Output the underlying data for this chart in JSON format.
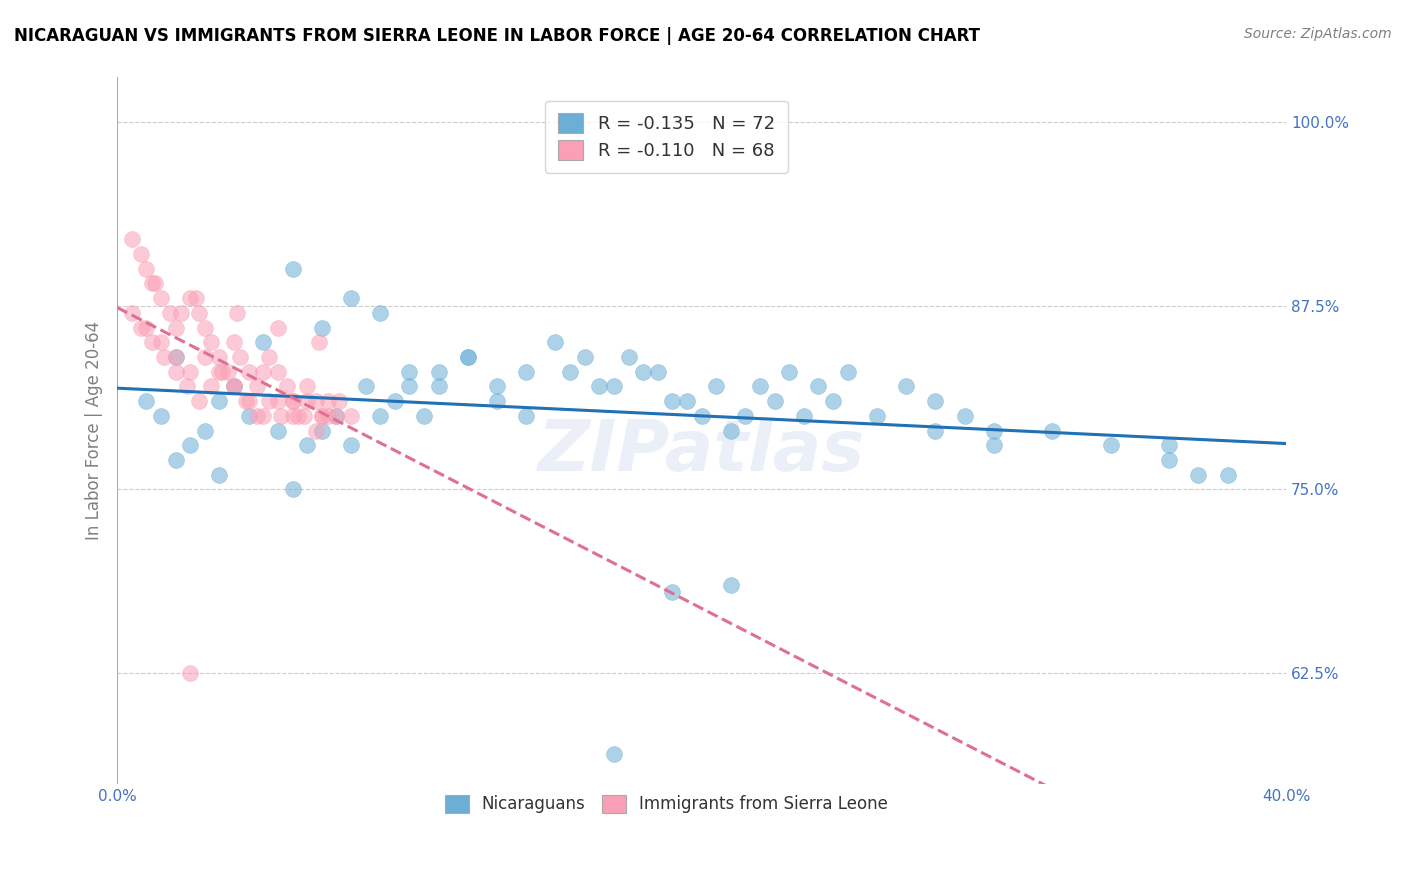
{
  "title": "NICARAGUAN VS IMMIGRANTS FROM SIERRA LEONE IN LABOR FORCE | AGE 20-64 CORRELATION CHART",
  "source": "Source: ZipAtlas.com",
  "ylabel": "In Labor Force | Age 20-64",
  "xlim": [
    0.0,
    0.4
  ],
  "ylim": [
    0.55,
    1.03
  ],
  "yticks": [
    0.625,
    0.75,
    0.875,
    1.0
  ],
  "ytick_labels": [
    "62.5%",
    "75.0%",
    "87.5%",
    "100.0%"
  ],
  "xticks": [
    0.0,
    0.05,
    0.1,
    0.15,
    0.2,
    0.25,
    0.3,
    0.35,
    0.4
  ],
  "legend1_label": "R = -0.135   N = 72",
  "legend2_label": "R = -0.110   N = 68",
  "legend_bottom_label1": "Nicaraguans",
  "legend_bottom_label2": "Immigrants from Sierra Leone",
  "blue_color": "#6baed6",
  "pink_color": "#fa9fb5",
  "trend_blue": "#2171b5",
  "trend_pink": "#e07090",
  "watermark": "ZIPatlas",
  "blue_scatter_x": [
    0.02,
    0.04,
    0.02,
    0.03,
    0.01,
    0.015,
    0.025,
    0.035,
    0.06,
    0.07,
    0.05,
    0.08,
    0.09,
    0.1,
    0.11,
    0.12,
    0.13,
    0.14,
    0.06,
    0.07,
    0.08,
    0.09,
    0.1,
    0.11,
    0.16,
    0.17,
    0.18,
    0.19,
    0.2,
    0.21,
    0.15,
    0.14,
    0.13,
    0.12,
    0.22,
    0.23,
    0.24,
    0.25,
    0.26,
    0.27,
    0.28,
    0.29,
    0.3,
    0.32,
    0.36,
    0.37,
    0.035,
    0.045,
    0.055,
    0.065,
    0.075,
    0.085,
    0.095,
    0.105,
    0.155,
    0.165,
    0.175,
    0.185,
    0.195,
    0.205,
    0.215,
    0.225,
    0.235,
    0.245,
    0.28,
    0.3,
    0.34,
    0.36,
    0.38,
    0.21,
    0.19,
    0.17
  ],
  "blue_scatter_y": [
    0.84,
    0.82,
    0.77,
    0.79,
    0.81,
    0.8,
    0.78,
    0.76,
    0.9,
    0.86,
    0.85,
    0.88,
    0.87,
    0.83,
    0.82,
    0.84,
    0.81,
    0.8,
    0.75,
    0.79,
    0.78,
    0.8,
    0.82,
    0.83,
    0.84,
    0.82,
    0.83,
    0.81,
    0.8,
    0.79,
    0.85,
    0.83,
    0.82,
    0.84,
    0.82,
    0.83,
    0.82,
    0.83,
    0.8,
    0.82,
    0.81,
    0.8,
    0.79,
    0.79,
    0.78,
    0.76,
    0.81,
    0.8,
    0.79,
    0.78,
    0.8,
    0.82,
    0.81,
    0.8,
    0.83,
    0.82,
    0.84,
    0.83,
    0.81,
    0.82,
    0.8,
    0.81,
    0.8,
    0.81,
    0.79,
    0.78,
    0.78,
    0.77,
    0.76,
    0.685,
    0.68,
    0.57
  ],
  "pink_scatter_x": [
    0.005,
    0.008,
    0.01,
    0.012,
    0.015,
    0.018,
    0.02,
    0.022,
    0.025,
    0.028,
    0.03,
    0.032,
    0.035,
    0.038,
    0.04,
    0.042,
    0.045,
    0.048,
    0.05,
    0.052,
    0.055,
    0.058,
    0.06,
    0.062,
    0.065,
    0.068,
    0.07,
    0.072,
    0.075,
    0.008,
    0.012,
    0.016,
    0.02,
    0.024,
    0.028,
    0.032,
    0.036,
    0.04,
    0.044,
    0.048,
    0.052,
    0.056,
    0.06,
    0.064,
    0.068,
    0.072,
    0.076,
    0.08,
    0.005,
    0.01,
    0.015,
    0.02,
    0.025,
    0.03,
    0.035,
    0.04,
    0.045,
    0.05,
    0.055,
    0.06,
    0.065,
    0.07,
    0.013,
    0.027,
    0.041,
    0.055,
    0.069,
    0.025
  ],
  "pink_scatter_y": [
    0.92,
    0.91,
    0.9,
    0.89,
    0.88,
    0.87,
    0.86,
    0.87,
    0.88,
    0.87,
    0.86,
    0.85,
    0.84,
    0.83,
    0.85,
    0.84,
    0.83,
    0.82,
    0.83,
    0.84,
    0.83,
    0.82,
    0.81,
    0.8,
    0.82,
    0.81,
    0.8,
    0.81,
    0.8,
    0.86,
    0.85,
    0.84,
    0.83,
    0.82,
    0.81,
    0.82,
    0.83,
    0.82,
    0.81,
    0.8,
    0.81,
    0.8,
    0.81,
    0.8,
    0.79,
    0.8,
    0.81,
    0.8,
    0.87,
    0.86,
    0.85,
    0.84,
    0.83,
    0.84,
    0.83,
    0.82,
    0.81,
    0.8,
    0.81,
    0.8,
    0.81,
    0.8,
    0.89,
    0.88,
    0.87,
    0.86,
    0.85,
    0.625
  ]
}
